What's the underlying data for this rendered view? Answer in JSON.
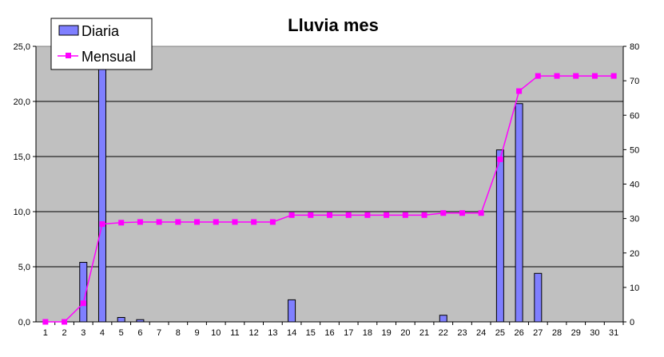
{
  "chart_data": {
    "type": "bar+line",
    "title": "Lluvia mes",
    "categories": [
      "1",
      "2",
      "3",
      "4",
      "5",
      "6",
      "7",
      "8",
      "9",
      "10",
      "11",
      "12",
      "13",
      "14",
      "15",
      "16",
      "17",
      "18",
      "19",
      "20",
      "21",
      "22",
      "23",
      "24",
      "25",
      "26",
      "27",
      "28",
      "29",
      "30",
      "31"
    ],
    "series": [
      {
        "name": "Diaria",
        "type": "bar",
        "axis": "left",
        "color": "#7f7fff",
        "values": [
          0,
          0,
          5.4,
          23.0,
          0.4,
          0.2,
          0,
          0,
          0,
          0,
          0,
          0,
          0,
          2.0,
          0,
          0,
          0,
          0,
          0,
          0,
          0,
          0.6,
          0,
          0,
          15.6,
          19.8,
          4.4,
          0,
          0,
          0,
          0
        ]
      },
      {
        "name": "Mensual",
        "type": "line",
        "axis": "right",
        "color": "#ff00ff",
        "values": [
          0,
          0,
          5.4,
          28.4,
          28.8,
          29.0,
          29.0,
          29.0,
          29.0,
          29.0,
          29.0,
          29.0,
          29.0,
          31.0,
          31.0,
          31.0,
          31.0,
          31.0,
          31.0,
          31.0,
          31.0,
          31.6,
          31.6,
          31.6,
          47.2,
          67.0,
          71.4,
          71.4,
          71.4,
          71.4,
          71.4
        ]
      }
    ],
    "y_left": {
      "min": 0,
      "max": 25,
      "step": 5,
      "tick_labels": [
        "0,0",
        "5,0",
        "10,0",
        "15,0",
        "20,0",
        "25,0"
      ]
    },
    "y_right": {
      "min": 0,
      "max": 80,
      "step": 10,
      "tick_labels": [
        "0",
        "10",
        "20",
        "30",
        "40",
        "50",
        "60",
        "70",
        "80"
      ]
    },
    "plot_background": "#c0c0c0",
    "grid": true,
    "legend_position": "top-left"
  }
}
